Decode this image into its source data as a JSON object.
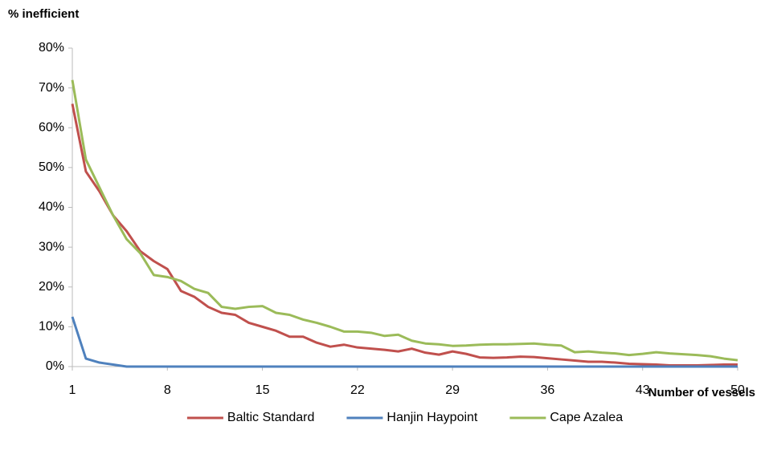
{
  "chart_data": {
    "type": "line",
    "y_axis_title": "% inefficient",
    "x_axis_title": "Number of vessels",
    "x": [
      1,
      2,
      3,
      4,
      5,
      6,
      7,
      8,
      9,
      10,
      11,
      12,
      13,
      14,
      15,
      16,
      17,
      18,
      19,
      20,
      21,
      22,
      23,
      24,
      25,
      26,
      27,
      28,
      29,
      30,
      31,
      32,
      33,
      34,
      35,
      36,
      37,
      38,
      39,
      40,
      41,
      42,
      43,
      44,
      45,
      46,
      47,
      48,
      49,
      50
    ],
    "xlim": [
      1,
      50
    ],
    "xticks": [
      1,
      8,
      15,
      22,
      29,
      36,
      43,
      50
    ],
    "ylim": [
      0,
      80
    ],
    "yticks": [
      {
        "value": 0,
        "label": "0%"
      },
      {
        "value": 10,
        "label": "10%"
      },
      {
        "value": 20,
        "label": "20%"
      },
      {
        "value": 30,
        "label": "30%"
      },
      {
        "value": 40,
        "label": "40%"
      },
      {
        "value": 50,
        "label": "50%"
      },
      {
        "value": 60,
        "label": "60%"
      },
      {
        "value": 70,
        "label": "70%"
      },
      {
        "value": 80,
        "label": "80%"
      }
    ],
    "legend": "bottom",
    "series": [
      {
        "name": "Baltic Standard",
        "color": "#c0504d",
        "values": [
          66,
          49,
          44,
          38,
          34,
          29,
          26.5,
          24.5,
          19,
          17.5,
          15,
          13.5,
          13,
          11,
          10,
          9,
          7.5,
          7.5,
          6,
          5,
          5.5,
          4.8,
          4.5,
          4.2,
          3.8,
          4.5,
          3.5,
          3,
          3.8,
          3.2,
          2.3,
          2.2,
          2.3,
          2.5,
          2.4,
          2.1,
          1.8,
          1.5,
          1.2,
          1.2,
          1,
          0.7,
          0.6,
          0.5,
          0.3,
          0.3,
          0.3,
          0.4,
          0.5,
          0.5
        ]
      },
      {
        "name": "Hanjin Haypoint",
        "color": "#4f81bd",
        "values": [
          12.5,
          2,
          1,
          0.5,
          0,
          0,
          0,
          0,
          0,
          0,
          0,
          0,
          0,
          0,
          0,
          0,
          0,
          0,
          0,
          0,
          0,
          0,
          0,
          0,
          0,
          0,
          0,
          0,
          0,
          0,
          0,
          0,
          0,
          0,
          0,
          0,
          0,
          0,
          0,
          0,
          0,
          0,
          0,
          0,
          0,
          0,
          0,
          0,
          0,
          0
        ]
      },
      {
        "name": "Cape Azalea",
        "color": "#9bbb59",
        "values": [
          72,
          52,
          45,
          38,
          32,
          28.5,
          23,
          22.5,
          21.5,
          19.5,
          18.5,
          15,
          14.5,
          15,
          15.2,
          13.5,
          13,
          11.8,
          11,
          10,
          8.8,
          8.8,
          8.5,
          7.7,
          8,
          6.5,
          5.8,
          5.6,
          5.2,
          5.3,
          5.5,
          5.6,
          5.6,
          5.7,
          5.8,
          5.5,
          5.3,
          3.6,
          3.8,
          3.5,
          3.3,
          2.9,
          3.2,
          3.6,
          3.3,
          3.1,
          2.9,
          2.6,
          2,
          1.6
        ]
      }
    ]
  }
}
